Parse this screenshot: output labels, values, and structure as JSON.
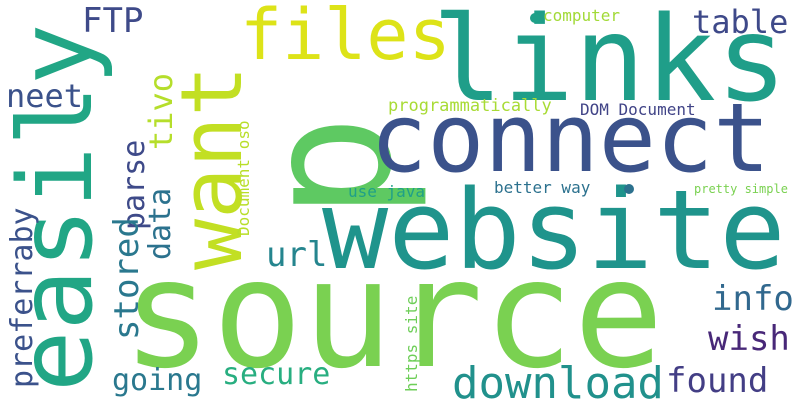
{
  "words": [
    {
      "text": "p",
      "color": "#5ec962"
    },
    {
      "text": "source",
      "color": "#7ad151"
    },
    {
      "text": "website",
      "color": "#1f948c"
    },
    {
      "text": "connect",
      "color": "#3b528b"
    },
    {
      "text": "links",
      "color": "#1f9e89"
    },
    {
      "text": "easily",
      "color": "#21a685"
    },
    {
      "text": "want",
      "color": "#c2df23"
    },
    {
      "text": "files",
      "color": "#dde318"
    },
    {
      "text": "download",
      "color": "#21918c"
    },
    {
      "text": "FTP",
      "color": "#3e4a89"
    },
    {
      "text": "table",
      "color": "#3e4989"
    },
    {
      "text": "neet",
      "color": "#3b528b"
    },
    {
      "text": "tivo",
      "color": "#b5de2b"
    },
    {
      "text": "parse",
      "color": "#3e4a89"
    },
    {
      "text": "data",
      "color": "#2c728e"
    },
    {
      "text": "stored",
      "color": "#2a788e"
    },
    {
      "text": "preferraby",
      "color": "#3b528b"
    },
    {
      "text": "url",
      "color": "#25858e"
    },
    {
      "text": "info",
      "color": "#31688e"
    },
    {
      "text": "wish",
      "color": "#482878"
    },
    {
      "text": "found",
      "color": "#433e85"
    },
    {
      "text": "going",
      "color": "#2a788e"
    },
    {
      "text": "secure",
      "color": "#28ae80"
    },
    {
      "text": "computer",
      "color": "#a2da37"
    },
    {
      "text": "programmatically",
      "color": "#a8db34"
    },
    {
      "text": "DOM Document",
      "color": "#414487"
    },
    {
      "text": "Document oso",
      "color": "#b8de29"
    },
    {
      "text": "use java",
      "color": "#1fa088"
    },
    {
      "text": "better way",
      "color": "#2c718e"
    },
    {
      "text": "pretty simple",
      "color": "#7ad151"
    },
    {
      "text": "https site",
      "color": "#6ece58"
    }
  ],
  "dot_colors": [
    "#1fa088",
    "#2c718e"
  ]
}
